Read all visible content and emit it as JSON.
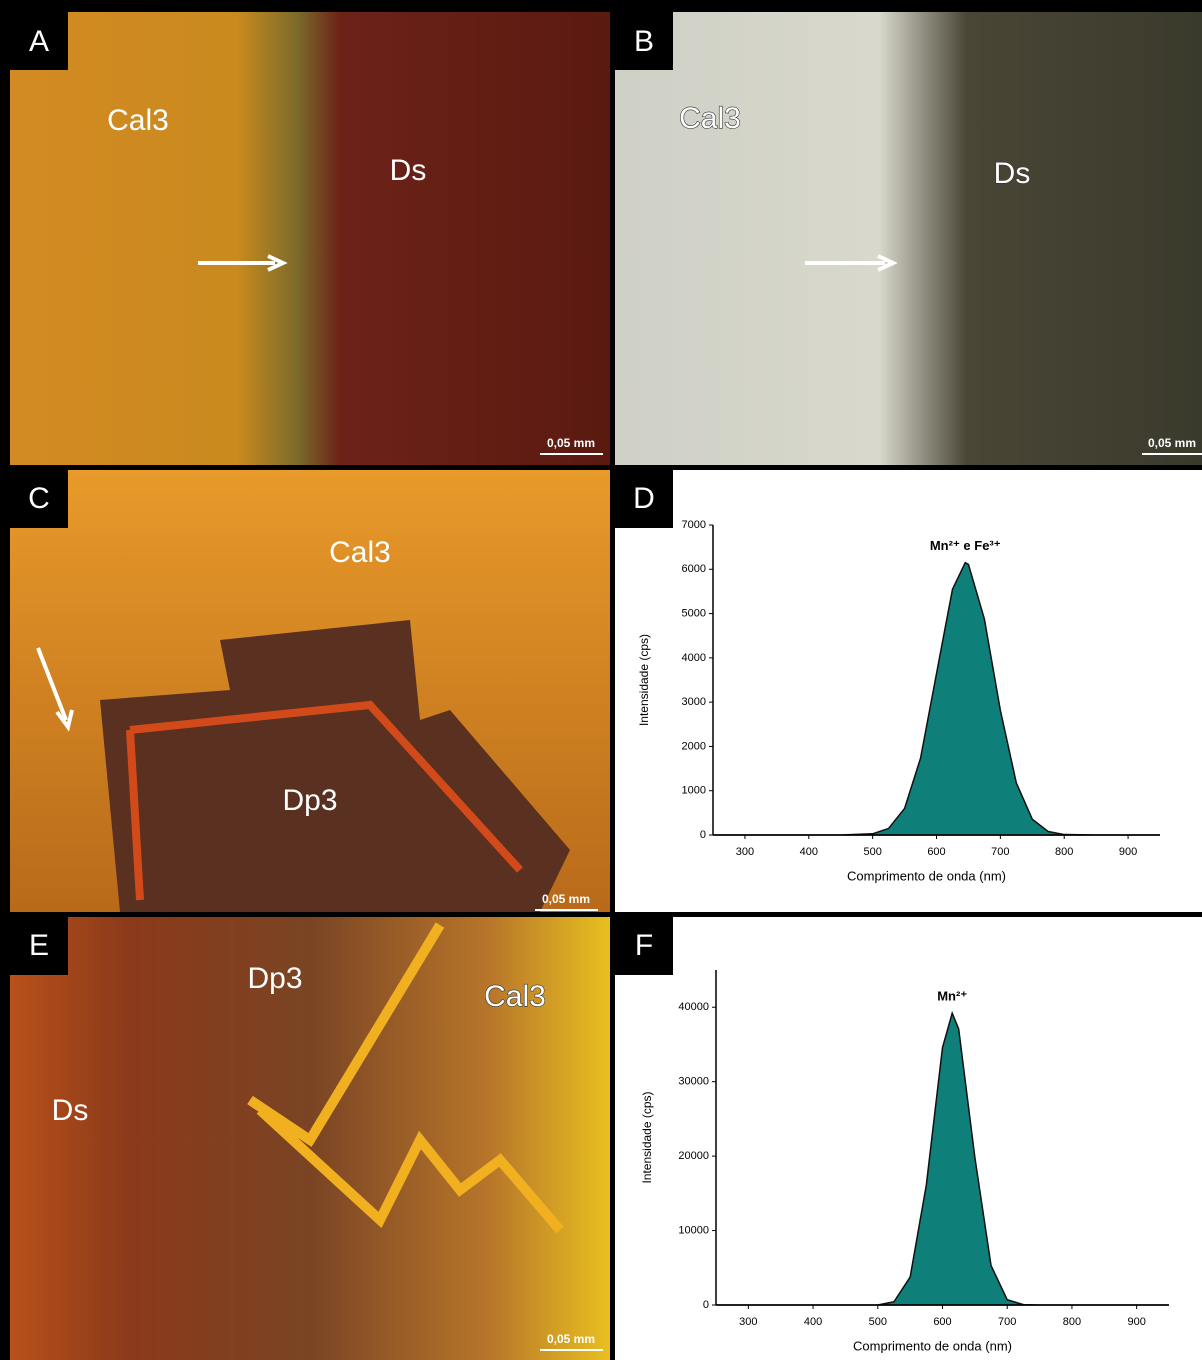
{
  "panels": [
    {
      "label": "A",
      "annotations": [
        "Cal3",
        "Ds"
      ],
      "scale": "0,05 mm"
    },
    {
      "label": "B",
      "annotations": [
        "Cal3",
        "Ds"
      ],
      "scale": "0,05 mm"
    },
    {
      "label": "C",
      "annotations": [
        "Cal3",
        "Dp3"
      ],
      "scale": "0,05 mm"
    },
    {
      "label": "E",
      "annotations": [
        "Dp3",
        "Cal3",
        "Ds"
      ],
      "scale": "0,05 mm"
    }
  ],
  "chart_data": [
    {
      "type": "area",
      "panel": "D",
      "annotation": "Mn²⁺ e Fe³⁺",
      "xlabel": "Comprimento de onda (nm)",
      "ylabel": "Intensidade (cps)",
      "color": "#0f7f79",
      "x": [
        250,
        300,
        350,
        400,
        450,
        500,
        525,
        550,
        575,
        600,
        625,
        645,
        650,
        675,
        700,
        725,
        750,
        775,
        800,
        850,
        900,
        950
      ],
      "values": [
        0,
        0,
        0,
        0,
        0,
        27,
        149,
        598,
        1734,
        3645,
        5547,
        6150,
        6110,
        4876,
        2816,
        1177,
        356,
        78,
        10,
        0,
        0,
        0
      ],
      "xlim": [
        250,
        950
      ],
      "xticks": [
        300,
        400,
        500,
        600,
        700,
        800,
        900
      ],
      "ylim": [
        0,
        7000
      ],
      "yticks": [
        0,
        1000,
        2000,
        3000,
        4000,
        5000,
        6000,
        7000
      ]
    },
    {
      "type": "area",
      "panel": "F",
      "annotation": "Mn²⁺",
      "xlabel": "Comprimento de onda (nm)",
      "ylabel": "Intensidade (cps)",
      "color": "#0f7f79",
      "x": [
        250,
        300,
        350,
        400,
        450,
        500,
        525,
        550,
        575,
        600,
        615,
        625,
        650,
        675,
        700,
        725,
        750,
        800,
        850,
        900,
        950
      ],
      "values": [
        0,
        0,
        0,
        0,
        0,
        0,
        435,
        3748,
        16120,
        34594,
        39200,
        37081,
        19840,
        5305,
        706,
        47,
        0,
        0,
        0,
        0,
        0
      ],
      "xlim": [
        250,
        950
      ],
      "xticks": [
        300,
        400,
        500,
        600,
        700,
        800,
        900
      ],
      "ylim": [
        0,
        45000
      ],
      "yticks": [
        0,
        10000,
        20000,
        30000,
        40000
      ]
    }
  ]
}
